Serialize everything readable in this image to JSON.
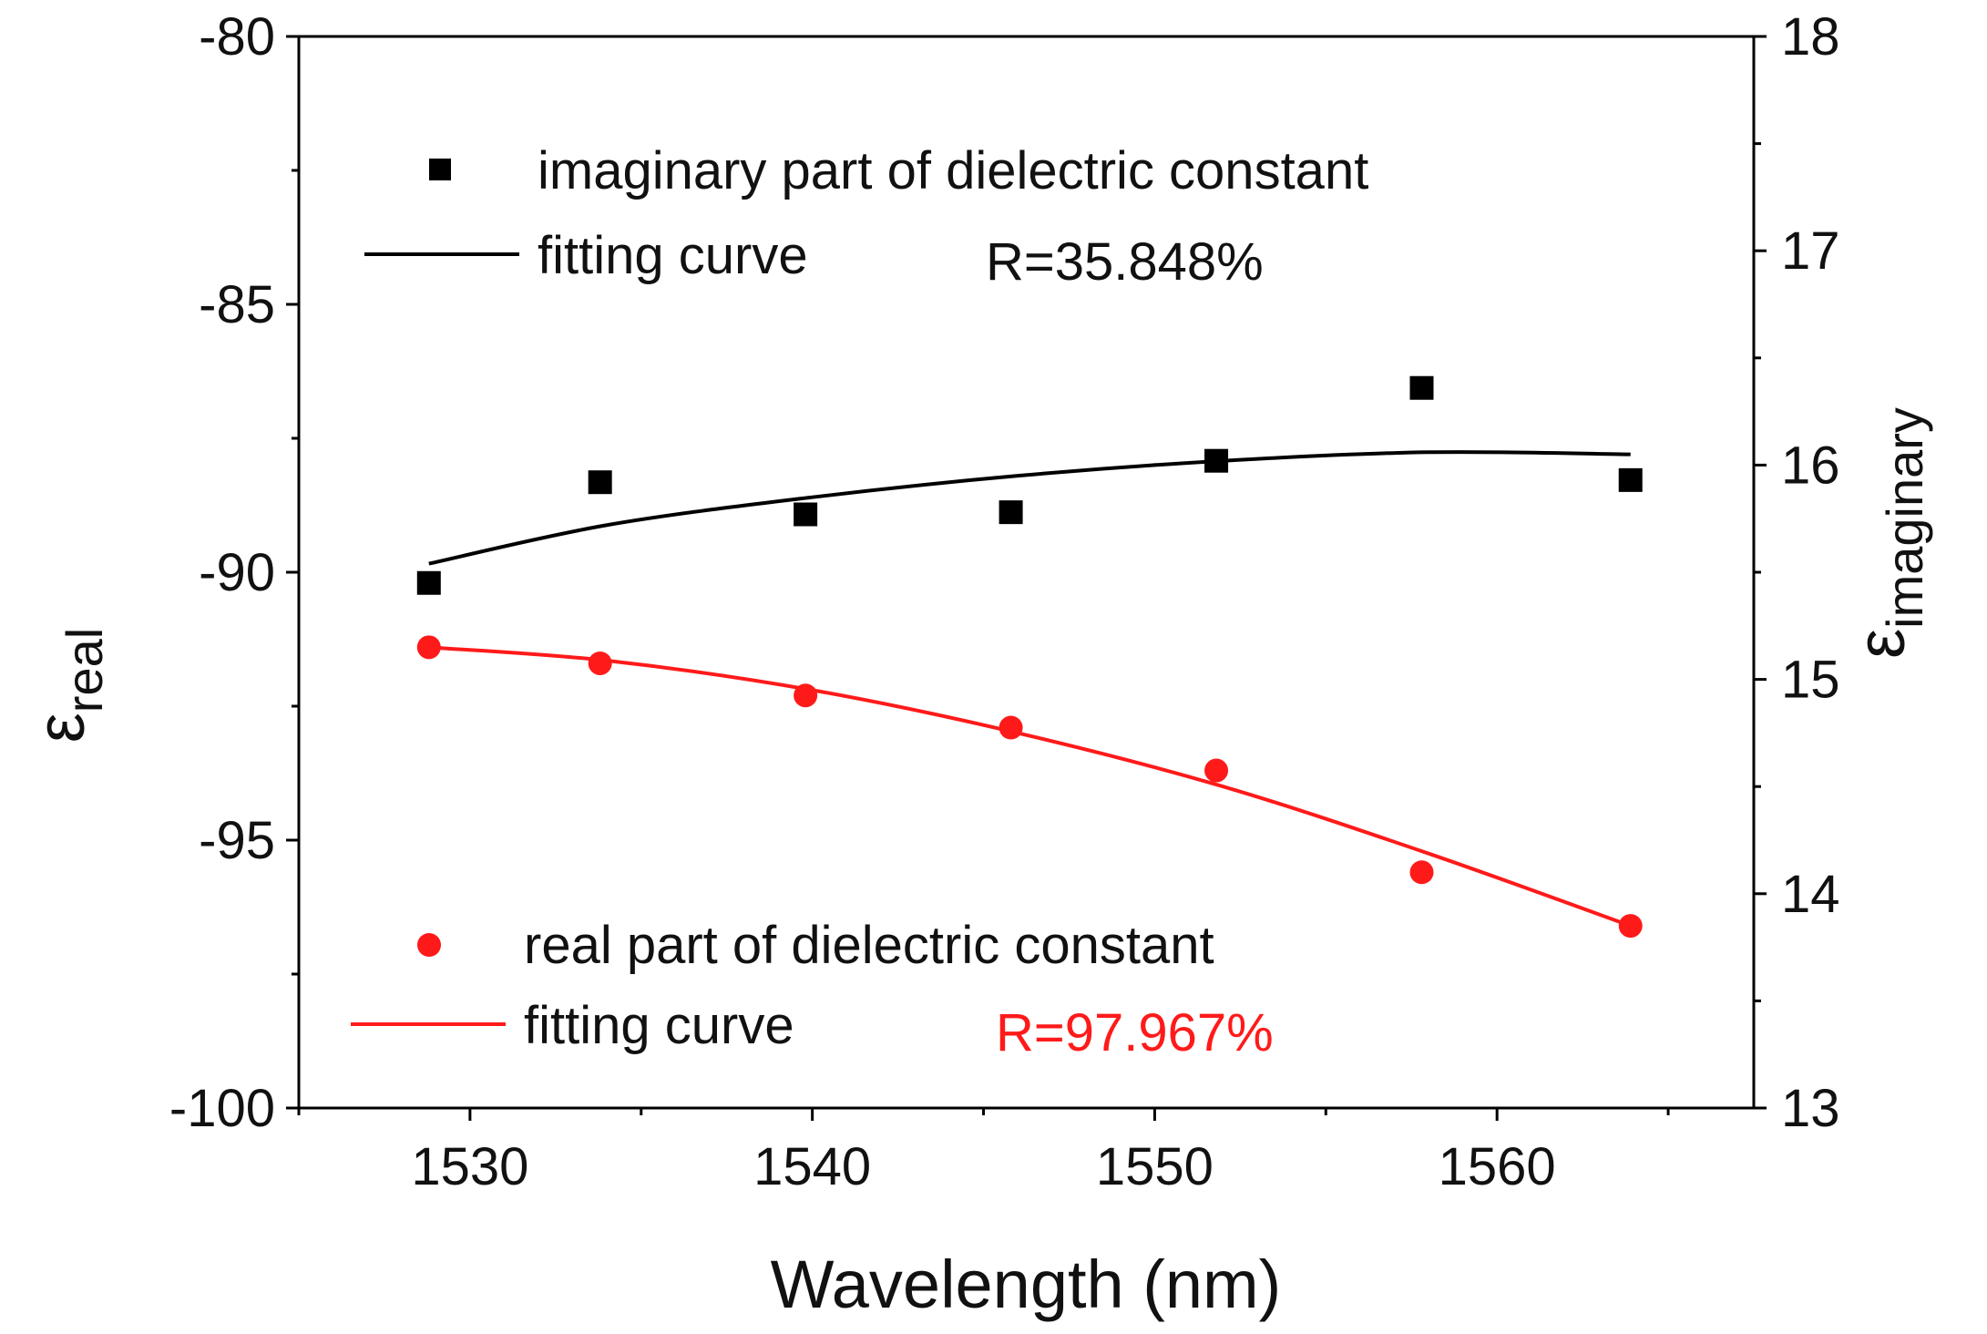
{
  "chart_data": {
    "type": "scatter",
    "xlabel": "Wavelength (nm)",
    "ylabel_left": {
      "symbol": "ε",
      "subscript": "real"
    },
    "ylabel_right": {
      "symbol": "ε",
      "subscript": "imaginary"
    },
    "xlim": [
      1525,
      1567.5
    ],
    "ylim_left": [
      -100,
      -80
    ],
    "ylim_right": [
      13,
      18
    ],
    "x_ticks": [
      1530,
      1540,
      1550,
      1560
    ],
    "x_minor_ticks": [
      1525,
      1535,
      1545,
      1555,
      1565
    ],
    "y_left_ticks": [
      -80,
      -85,
      -90,
      -95,
      -100
    ],
    "y_right_ticks": [
      18,
      17,
      16,
      15,
      14,
      13
    ],
    "series": [
      {
        "name": "imaginary part of dielectric constant",
        "axis": "right",
        "marker": "square",
        "color": "#000000",
        "x": [
          1528.8,
          1533.8,
          1539.8,
          1545.8,
          1551.8,
          1557.8,
          1563.9
        ],
        "y": [
          15.45,
          15.92,
          15.77,
          15.78,
          16.02,
          16.36,
          15.93
        ]
      },
      {
        "name": "fitting curve",
        "axis": "right",
        "line": true,
        "color": "#000000",
        "x": [
          1528.8,
          1534,
          1540,
          1546,
          1552,
          1558,
          1563.9
        ],
        "y": [
          15.54,
          15.72,
          15.85,
          15.95,
          16.02,
          16.06,
          16.05
        ],
        "annotation": "R=35.848%"
      },
      {
        "name": "real part of dielectric constant",
        "axis": "left",
        "marker": "circle",
        "color": "#ff1a1a",
        "x": [
          1528.8,
          1533.8,
          1539.8,
          1545.8,
          1551.8,
          1557.8,
          1563.9
        ],
        "y": [
          -91.4,
          -91.7,
          -92.3,
          -92.9,
          -93.7,
          -95.6,
          -96.6
        ]
      },
      {
        "name": "fitting curve",
        "axis": "left",
        "line": true,
        "color": "#ff1a1a",
        "x": [
          1528.8,
          1534,
          1540,
          1546,
          1552,
          1558,
          1563.9
        ],
        "y": [
          -91.4,
          -91.65,
          -92.2,
          -93.0,
          -94.0,
          -95.25,
          -96.6
        ],
        "annotation": "R=97.967%"
      }
    ]
  }
}
